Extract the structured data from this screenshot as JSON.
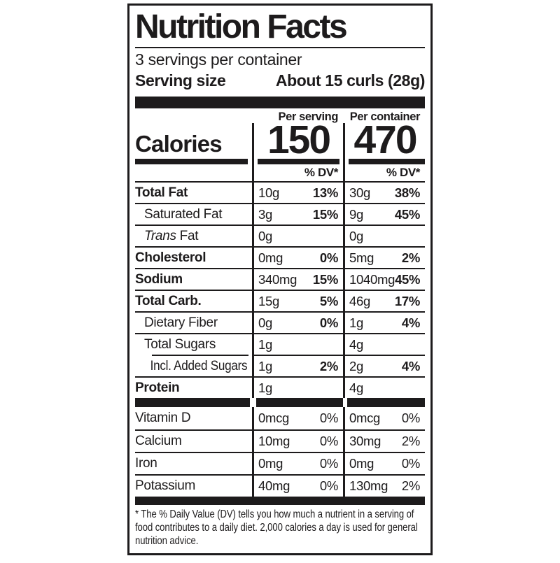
{
  "label": {
    "colors": {
      "ink": "#1d1b1c",
      "background": "#ffffff"
    },
    "title": "Nutrition Facts",
    "servings_per_container": "3 servings per container",
    "serving_size": {
      "label": "Serving size",
      "value": "About 15 curls (28g)"
    },
    "column_headers": {
      "per_serving": "Per serving",
      "per_container": "Per container"
    },
    "calories": {
      "label": "Calories",
      "per_serving": "150",
      "per_container": "470"
    },
    "dv_header": {
      "per_serving": "% DV*",
      "per_container": "% DV*"
    },
    "nutrients": [
      {
        "name": "Total Fat",
        "bold": true,
        "indent": 0,
        "ps": {
          "amount": "10g",
          "dv": "13%"
        },
        "pc": {
          "amount": "30g",
          "dv": "38%"
        }
      },
      {
        "name": "Saturated Fat",
        "bold": false,
        "indent": 1,
        "ps": {
          "amount": "3g",
          "dv": "15%"
        },
        "pc": {
          "amount": "9g",
          "dv": "45%"
        }
      },
      {
        "name": "Trans Fat",
        "bold": false,
        "indent": 1,
        "italic_prefix": "Trans",
        "ps": {
          "amount": "0g",
          "dv": ""
        },
        "pc": {
          "amount": "0g",
          "dv": ""
        }
      },
      {
        "name": "Cholesterol",
        "bold": true,
        "indent": 0,
        "ps": {
          "amount": "0mg",
          "dv": "0%"
        },
        "pc": {
          "amount": "5mg",
          "dv": "2%"
        }
      },
      {
        "name": "Sodium",
        "bold": true,
        "indent": 0,
        "ps": {
          "amount": "340mg",
          "dv": "15%"
        },
        "pc": {
          "amount": "1040mg",
          "dv": "45%"
        }
      },
      {
        "name": "Total Carb.",
        "bold": true,
        "indent": 0,
        "ps": {
          "amount": "15g",
          "dv": "5%"
        },
        "pc": {
          "amount": "46g",
          "dv": "17%"
        }
      },
      {
        "name": "Dietary Fiber",
        "bold": false,
        "indent": 1,
        "ps": {
          "amount": "0g",
          "dv": "0%"
        },
        "pc": {
          "amount": "1g",
          "dv": "4%"
        }
      },
      {
        "name": "Total Sugars",
        "bold": false,
        "indent": 1,
        "ps": {
          "amount": "1g",
          "dv": ""
        },
        "pc": {
          "amount": "4g",
          "dv": ""
        }
      },
      {
        "name": "Incl. Added Sugars",
        "bold": false,
        "indent": 2,
        "indent_hairline": true,
        "ps": {
          "amount": "1g",
          "dv": "2%"
        },
        "pc": {
          "amount": "2g",
          "dv": "4%"
        }
      },
      {
        "name": "Protein",
        "bold": true,
        "indent": 0,
        "ps": {
          "amount": "1g",
          "dv": ""
        },
        "pc": {
          "amount": "4g",
          "dv": ""
        }
      }
    ],
    "vitamins": [
      {
        "name": "Vitamin D",
        "ps": {
          "amount": "0mcg",
          "dv": "0%"
        },
        "pc": {
          "amount": "0mcg",
          "dv": "0%"
        }
      },
      {
        "name": "Calcium",
        "ps": {
          "amount": "10mg",
          "dv": "0%"
        },
        "pc": {
          "amount": "30mg",
          "dv": "2%"
        }
      },
      {
        "name": "Iron",
        "ps": {
          "amount": "0mg",
          "dv": "0%"
        },
        "pc": {
          "amount": "0mg",
          "dv": "0%"
        }
      },
      {
        "name": "Potassium",
        "ps": {
          "amount": "40mg",
          "dv": "0%"
        },
        "pc": {
          "amount": "130mg",
          "dv": "2%"
        }
      }
    ],
    "footnote_lines": [
      "* The % Daily Value (DV) tells you how much a nutrient in a serving of",
      "food contributes to a daily diet. 2,000 calories a day is used for general",
      "nutrition advice."
    ]
  }
}
